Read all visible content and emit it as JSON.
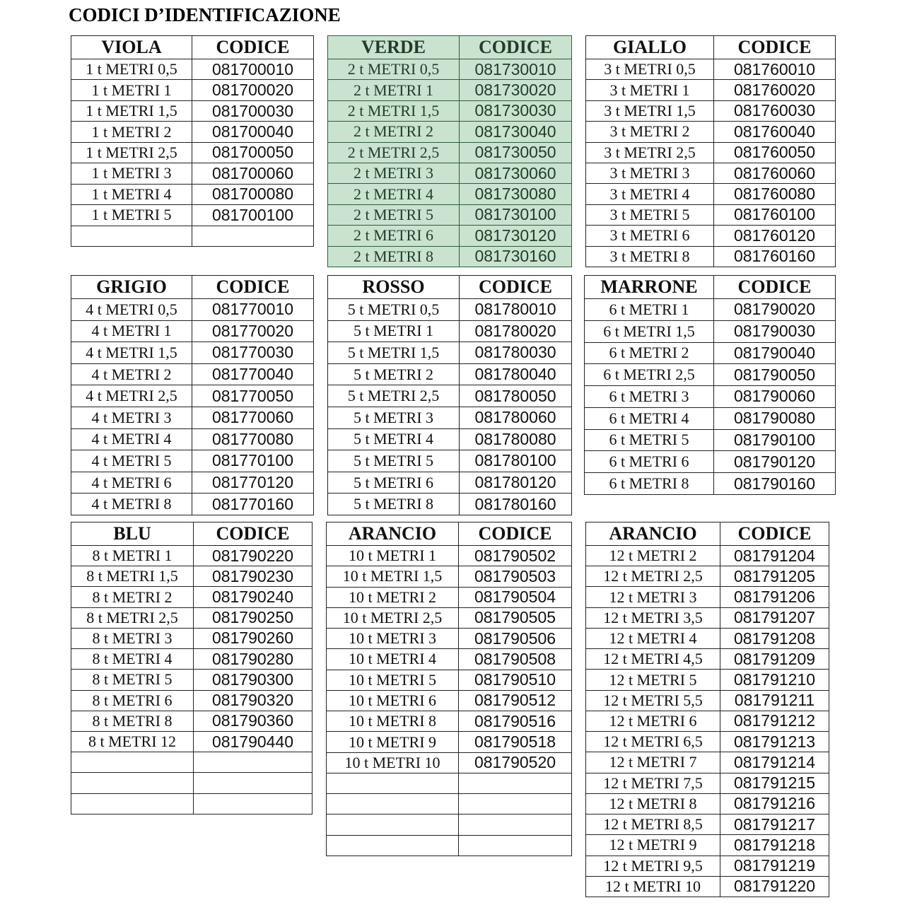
{
  "title": "CODICI D’IDENTIFICAZIONE",
  "colors": {
    "green_bg": "#c9e3d0",
    "green_text": "#1f3d2a"
  },
  "tables": [
    {
      "name": "VIOLA",
      "code_header": "CODICE",
      "highlight": false,
      "blank_rows": 1,
      "rows": [
        [
          "1 t  METRI 0,5",
          "081700010"
        ],
        [
          "1 t  METRI 1",
          "081700020"
        ],
        [
          "1 t  METRI 1,5",
          "081700030"
        ],
        [
          "1 t  METRI 2",
          "081700040"
        ],
        [
          "1 t  METRI 2,5",
          "081700050"
        ],
        [
          "1 t  METRI 3",
          "081700060"
        ],
        [
          "1 t  METRI 4",
          "081700080"
        ],
        [
          "1 t  METRI 5",
          "081700100"
        ]
      ]
    },
    {
      "name": "VERDE",
      "code_header": "CODICE",
      "highlight": true,
      "blank_rows": 0,
      "rows": [
        [
          "2 t  METRI 0,5",
          "081730010"
        ],
        [
          "2 t  METRI 1",
          "081730020"
        ],
        [
          "2 t  METRI 1,5",
          "081730030"
        ],
        [
          "2 t  METRI 2",
          "081730040"
        ],
        [
          "2 t  METRI 2,5",
          "081730050"
        ],
        [
          "2 t  METRI 3",
          "081730060"
        ],
        [
          "2 t  METRI 4",
          "081730080"
        ],
        [
          "2 t  METRI 5",
          "081730100"
        ],
        [
          "2 t  METRI 6",
          "081730120"
        ],
        [
          "2 t  METRI 8",
          "081730160"
        ]
      ]
    },
    {
      "name": "GIALLO",
      "code_header": "CODICE",
      "highlight": false,
      "blank_rows": 0,
      "rows": [
        [
          "3 t  METRI 0,5",
          "081760010"
        ],
        [
          "3 t  METRI 1",
          "081760020"
        ],
        [
          "3 t  METRI 1,5",
          "081760030"
        ],
        [
          "3 t  METRI 2",
          "081760040"
        ],
        [
          "3 t  METRI 2,5",
          "081760050"
        ],
        [
          "3 t  METRI 3",
          "081760060"
        ],
        [
          "3 t  METRI 4",
          "081760080"
        ],
        [
          "3 t  METRI 5",
          "081760100"
        ],
        [
          "3 t  METRI 6",
          "081760120"
        ],
        [
          "3 t  METRI 8",
          "081760160"
        ]
      ]
    },
    {
      "name": "GRIGIO",
      "code_header": "CODICE",
      "highlight": false,
      "blank_rows": 0,
      "rows": [
        [
          "4 t  METRI 0,5",
          "081770010"
        ],
        [
          "4 t  METRI 1",
          "081770020"
        ],
        [
          "4 t  METRI 1,5",
          "081770030"
        ],
        [
          "4 t  METRI 2",
          "081770040"
        ],
        [
          "4 t  METRI 2,5",
          "081770050"
        ],
        [
          "4 t  METRI 3",
          "081770060"
        ],
        [
          "4 t METRI 4",
          "081770080"
        ],
        [
          "4 t METRI 5",
          "081770100"
        ],
        [
          "4 t METRI 6",
          "081770120"
        ],
        [
          "4 t METRI 8",
          "081770160"
        ]
      ]
    },
    {
      "name": "ROSSO",
      "code_header": "CODICE",
      "highlight": false,
      "blank_rows": 0,
      "rows": [
        [
          "5 t  METRI 0,5",
          "081780010"
        ],
        [
          "5 t  METRI 1",
          "081780020"
        ],
        [
          "5 t  METRI 1,5",
          "081780030"
        ],
        [
          "5 t  METRI 2",
          "081780040"
        ],
        [
          "5 t  METRI 2,5",
          "081780050"
        ],
        [
          "5 t  METRI 3",
          "081780060"
        ],
        [
          "5 t  METRI 4",
          "081780080"
        ],
        [
          "5 t  METRI 5",
          "081780100"
        ],
        [
          "5 t  METRI 6",
          "081780120"
        ],
        [
          "5 t  METRI 8",
          "081780160"
        ]
      ]
    },
    {
      "name": "MARRONE",
      "code_header": "CODICE",
      "highlight": false,
      "blank_rows": 0,
      "rows": [
        [
          "6 t  METRI 1",
          "081790020"
        ],
        [
          "6 t  METRI 1,5",
          "081790030"
        ],
        [
          "6 t  METRI 2",
          "081790040"
        ],
        [
          "6 t  METRI 2,5",
          "081790050"
        ],
        [
          "6 t  METRI 3",
          "081790060"
        ],
        [
          "6 t  METRI 4",
          "081790080"
        ],
        [
          "6 t  METRI 5",
          "081790100"
        ],
        [
          "6 t  METRI 6",
          "081790120"
        ],
        [
          "6 t  METRI 8",
          "081790160"
        ]
      ]
    },
    {
      "name": "BLU",
      "code_header": "CODICE",
      "highlight": false,
      "blank_rows": 3,
      "rows": [
        [
          "8 t  METRI 1",
          "081790220"
        ],
        [
          "8 t  METRI 1,5",
          "081790230"
        ],
        [
          "8 t  METRI 2",
          "081790240"
        ],
        [
          "8 t  METRI 2,5",
          "081790250"
        ],
        [
          "8 t  METRI 3",
          "081790260"
        ],
        [
          "8 t  METRI 4",
          "081790280"
        ],
        [
          "8 t  METRI 5",
          "081790300"
        ],
        [
          "8 t  METRI 6",
          "081790320"
        ],
        [
          "8 t  METRI 8",
          "081790360"
        ],
        [
          "8 t  METRI 12",
          "081790440"
        ]
      ]
    },
    {
      "name": "ARANCIO",
      "code_header": "CODICE",
      "highlight": false,
      "blank_rows": 4,
      "rows": [
        [
          "10 t  METRI 1",
          "081790502"
        ],
        [
          "10 t  METRI 1,5",
          "081790503"
        ],
        [
          "10 t  METRI 2",
          "081790504"
        ],
        [
          "10 t  METRI 2,5",
          "081790505"
        ],
        [
          "10 t  METRI 3",
          "081790506"
        ],
        [
          "10 t  METRI 4",
          "081790508"
        ],
        [
          "10 t  METRI 5",
          "081790510"
        ],
        [
          "10 t  METRI 6",
          "081790512"
        ],
        [
          "10 t  METRI 8",
          "081790516"
        ],
        [
          "10 t  METRI 9",
          "081790518"
        ],
        [
          "10 t  METRI 10",
          "081790520"
        ]
      ]
    },
    {
      "name": "ARANCIO",
      "code_header": "CODICE",
      "highlight": false,
      "blank_rows": 0,
      "rows": [
        [
          "12 t METRI 2",
          "081791204"
        ],
        [
          "12 t METRI 2,5",
          "081791205"
        ],
        [
          "12 t METRI 3",
          "081791206"
        ],
        [
          "12 t METRI 3,5",
          "081791207"
        ],
        [
          "12 t METRI 4",
          "081791208"
        ],
        [
          "12 t METRI 4,5",
          "081791209"
        ],
        [
          "12 t METRI 5",
          "081791210"
        ],
        [
          "12 t METRI 5,5",
          "081791211"
        ],
        [
          "12 t METRI 6",
          "081791212"
        ],
        [
          "12 t METRI 6,5",
          "081791213"
        ],
        [
          "12 t METRI 7",
          "081791214"
        ],
        [
          "12 t METRI 7,5",
          "081791215"
        ],
        [
          "12 t METRI 8",
          "081791216"
        ],
        [
          "12 t METRI 8,5",
          "081791217"
        ],
        [
          "12 t METRI 9",
          "081791218"
        ],
        [
          "12 t METRI 9,5",
          "081791219"
        ],
        [
          "12 t METRI 10",
          "081791220"
        ]
      ]
    }
  ]
}
